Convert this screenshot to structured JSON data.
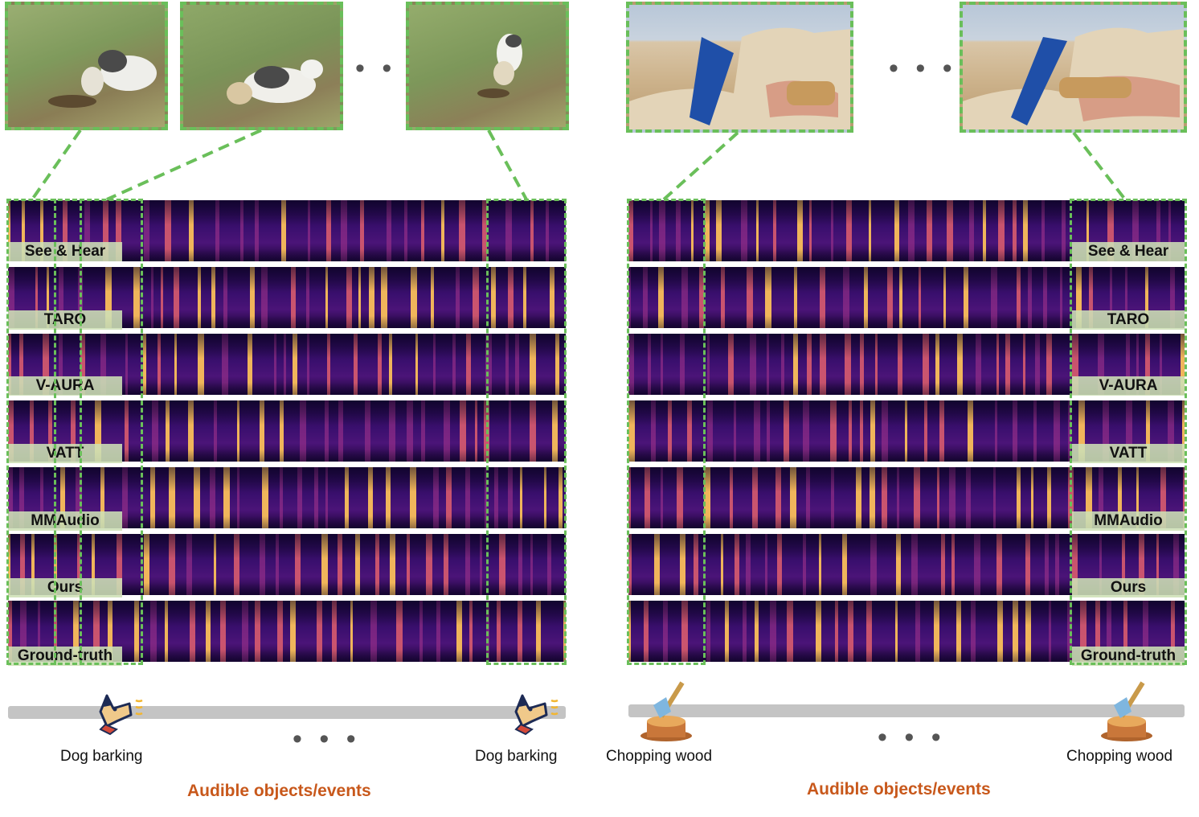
{
  "methods": [
    "See & Hear",
    "TARO",
    "V-AURA",
    "VATT",
    "MMAudio",
    "Ours",
    "Ground-truth"
  ],
  "panels": [
    {
      "id": "dog",
      "frame_ellipsis": "• • •",
      "timeline_ellipsis": "• • •",
      "events": [
        "Dog barking",
        "Dog barking"
      ],
      "footer": "Audible objects/events"
    },
    {
      "id": "wood",
      "frame_ellipsis": "• • •",
      "timeline_ellipsis": "• • •",
      "events": [
        "Chopping wood",
        "Chopping wood"
      ],
      "footer": "Audible objects/events"
    }
  ],
  "colors": {
    "accent_green": "#6abf5a",
    "label_bg": "#cee0b6",
    "footer_orange": "#c8581b",
    "timeline_gray": "#c4c4c4"
  },
  "icons": [
    "dog-barking-icon",
    "axe-stump-icon"
  ]
}
